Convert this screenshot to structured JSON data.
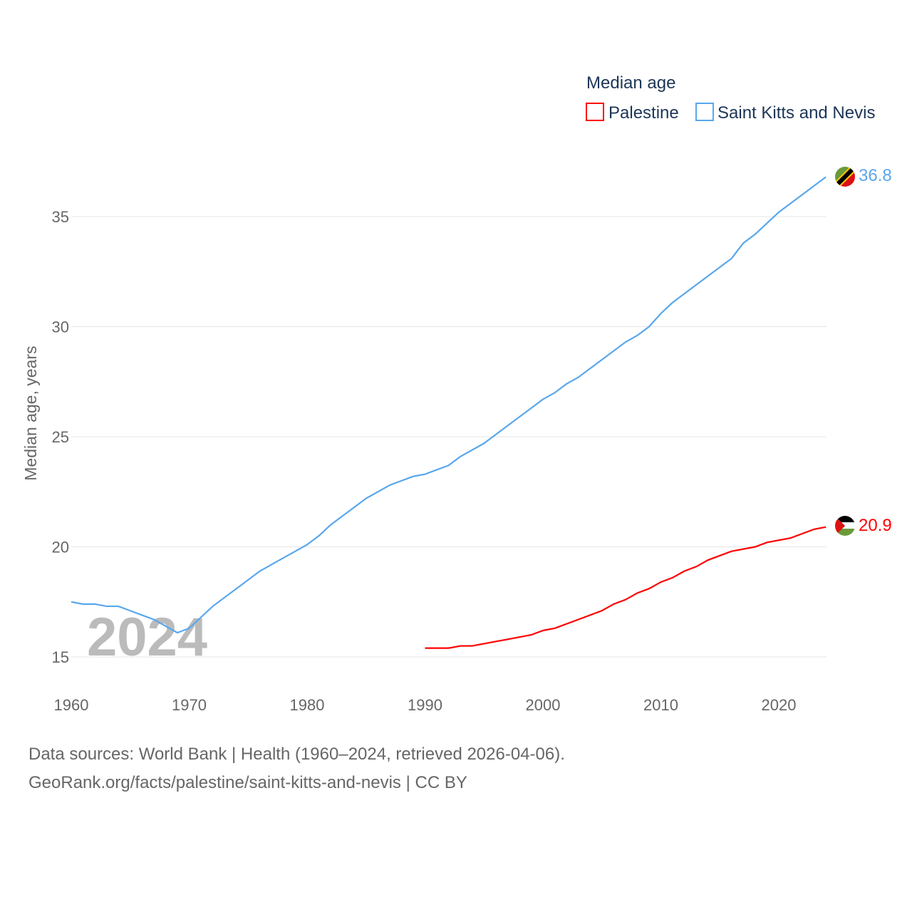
{
  "chart_data": {
    "type": "line",
    "legend_title": "Median age",
    "ylabel": "Median age, years",
    "ylim": [
      14,
      38
    ],
    "xlim": [
      1960,
      2024
    ],
    "yticks": [
      15,
      20,
      25,
      30,
      35
    ],
    "xticks": [
      1960,
      1970,
      1980,
      1990,
      2000,
      2010,
      2020
    ],
    "grid": true,
    "legend_placement": "top-right",
    "year_watermark": "2024",
    "series": [
      {
        "name": "Palestine",
        "color": "#ff0000",
        "end_label": "20.9",
        "flag": "palestine-flag",
        "x": [
          1990,
          1992,
          1993,
          1994,
          1995,
          1997,
          1999,
          2000,
          2001,
          2003,
          2005,
          2006,
          2007,
          2008,
          2009,
          2010,
          2011,
          2012,
          2013,
          2014,
          2016,
          2018,
          2019,
          2021,
          2023,
          2024
        ],
        "y": [
          15.4,
          15.4,
          15.5,
          15.5,
          15.6,
          15.8,
          16.0,
          16.2,
          16.3,
          16.7,
          17.1,
          17.4,
          17.6,
          17.9,
          18.1,
          18.4,
          18.6,
          18.9,
          19.1,
          19.4,
          19.8,
          20.0,
          20.2,
          20.4,
          20.8,
          20.9
        ]
      },
      {
        "name": "Saint Kitts and Nevis",
        "color": "#5aa7ec",
        "end_label": "36.8",
        "flag": "saint-kitts-and-nevis-flag",
        "x": [
          1960,
          1961,
          1962,
          1963,
          1964,
          1965,
          1966,
          1967,
          1968,
          1969,
          1970,
          1971,
          1972,
          1974,
          1976,
          1978,
          1980,
          1981,
          1982,
          1985,
          1987,
          1989,
          1990,
          1992,
          1993,
          1995,
          1997,
          1999,
          2000,
          2001,
          2002,
          2003,
          2005,
          2007,
          2008,
          2009,
          2010,
          2011,
          2012,
          2014,
          2016,
          2017,
          2018,
          2020,
          2022,
          2023,
          2024
        ],
        "y": [
          17.5,
          17.4,
          17.4,
          17.3,
          17.3,
          17.1,
          16.9,
          16.7,
          16.4,
          16.1,
          16.3,
          16.8,
          17.3,
          18.1,
          18.9,
          19.5,
          20.1,
          20.5,
          21.0,
          22.2,
          22.8,
          23.2,
          23.3,
          23.7,
          24.1,
          24.7,
          25.5,
          26.3,
          26.7,
          27.0,
          27.4,
          27.7,
          28.5,
          29.3,
          29.6,
          30.0,
          30.6,
          31.1,
          31.5,
          32.3,
          33.1,
          33.8,
          34.2,
          35.2,
          36.0,
          36.4,
          36.8
        ]
      }
    ]
  },
  "footer": {
    "line1": "Data sources: World Bank | Health (1960–2024, retrieved 2026-04-06).",
    "line2": "GeoRank.org/facts/palestine/saint-kitts-and-nevis | CC BY"
  }
}
